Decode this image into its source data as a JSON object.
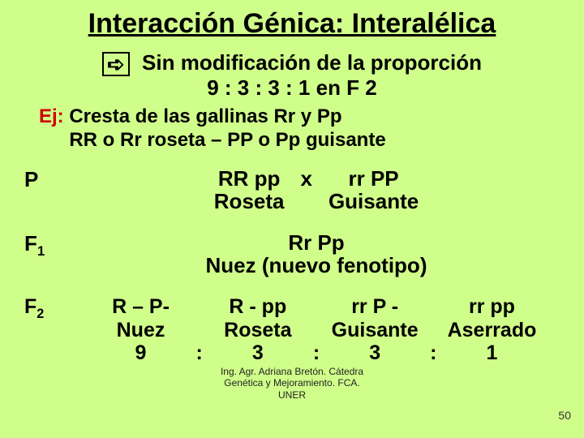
{
  "title": "Interacción Génica: Interalélica",
  "subheading": {
    "arrow": "➪",
    "line1": "Sin modificación de la proporción",
    "line2": "9 : 3 : 3 : 1 en F 2"
  },
  "example": {
    "ej_label": "Ej:",
    "line1": "Cresta de las gallinas Rr y Pp",
    "line2": "RR o Rr  roseta – PP o Pp guisante"
  },
  "generations": {
    "P": {
      "label": "P",
      "left_geno": "RR pp",
      "left_phen": "Roseta",
      "cross": "x",
      "right_geno": "rr PP",
      "right_phen": "Guisante"
    },
    "F1": {
      "label_base": "F",
      "label_sub": "1",
      "geno": "Rr Pp",
      "phen": "Nuez (nuevo fenotipo)"
    },
    "F2": {
      "label_base": "F",
      "label_sub": "2",
      "cells": [
        {
          "geno": "R – P-",
          "phen": "Nuez",
          "ratio": "9"
        },
        {
          "geno": "R - pp",
          "phen": "Roseta",
          "ratio": "3"
        },
        {
          "geno": "rr P -",
          "phen": "Guisante",
          "ratio": "3"
        },
        {
          "geno": "rr pp",
          "phen": "Aserrado",
          "ratio": "1"
        }
      ],
      "colon": ":"
    }
  },
  "credit": {
    "line1": "Ing. Agr. Adriana Bretón. Cátedra",
    "line2": "Genética y Mejoramiento. FCA.",
    "line3": "UNER"
  },
  "page_number": "50",
  "colors": {
    "background": "#d0fe8a",
    "text": "#000000",
    "ej": "#ce0000"
  }
}
